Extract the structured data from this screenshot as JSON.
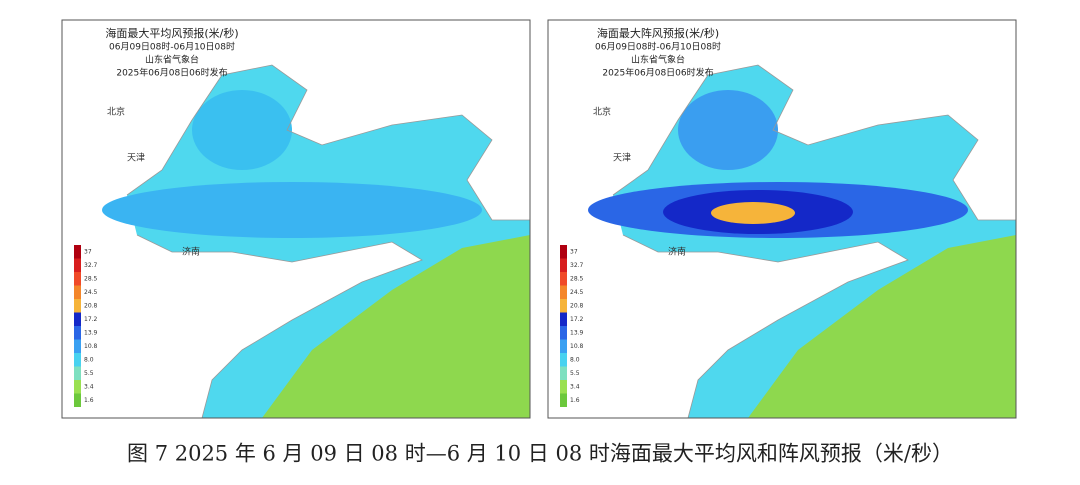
{
  "panels": [
    {
      "title": "海面最大平均风预报(米/秒)",
      "period": "06月09日08时-06月10日08时",
      "issuer": "山东省气象台",
      "issued": "2025年06月08日06时发布",
      "places": [
        "北京",
        "天津",
        "济南"
      ]
    },
    {
      "title": "海面最大阵风预报(米/秒)",
      "period": "06月09日08时-06月10日08时",
      "issuer": "山东省气象台",
      "issued": "2025年06月08日06时发布",
      "places": [
        "北京",
        "天津",
        "济南"
      ]
    }
  ],
  "legend": {
    "levels": [
      "37",
      "32.7",
      "28.5",
      "24.5",
      "20.8",
      "17.2",
      "13.9",
      "10.8",
      "8.0",
      "5.5",
      "3.4",
      "1.6"
    ],
    "colors": [
      "#b00010",
      "#d81e1e",
      "#f04a28",
      "#f4862a",
      "#f6b43a",
      "#1428c8",
      "#2a66e6",
      "#3aa0f2",
      "#48d2f0",
      "#7ee0c0",
      "#9ae050",
      "#6cc83c"
    ]
  },
  "caption": "图 7 2025 年 6 月 09 日 08 时—6 月 10 日 08 时海面最大平均风和阵风预报（米/秒）"
}
